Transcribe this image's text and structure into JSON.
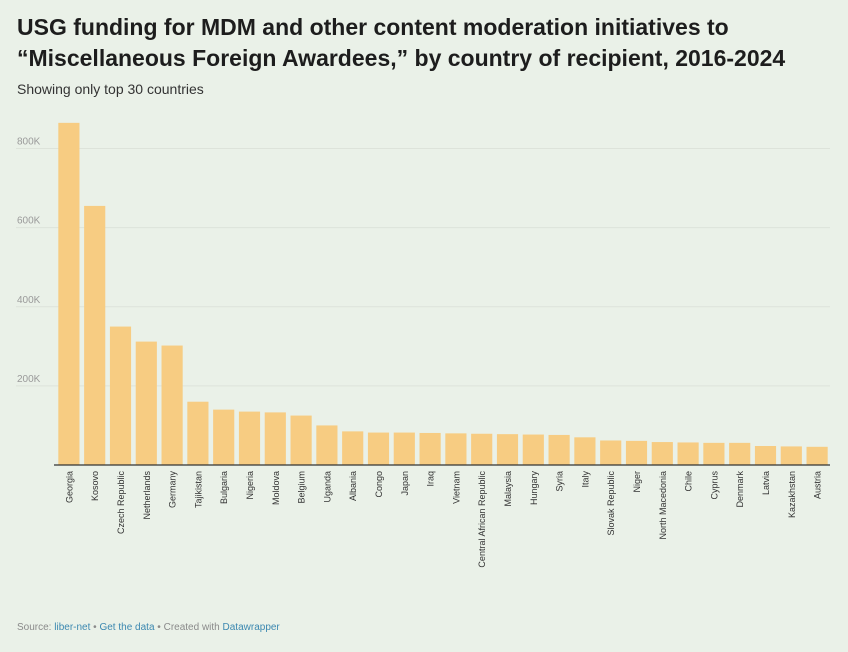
{
  "header": {
    "title_line1": "USG funding for MDM and other content moderation initiatives to",
    "title_line2": "“Miscellaneous Foreign Awardees,” by country of recipient, 2016-2024",
    "subtitle": "Showing only top 30 countries"
  },
  "footer": {
    "source_label": "Source:",
    "source_link": "liber-net",
    "separator": "•",
    "data_link": "Get the data",
    "created_label": "Created with",
    "created_link": "Datawrapper"
  },
  "colors": {
    "bar": "#f7cc82",
    "grid": "#dde3da",
    "tick_text": "#9a9a9a",
    "axis": "#333333"
  },
  "chart_data": {
    "type": "bar",
    "title": "USG funding for MDM and other content moderation initiatives to “Miscellaneous Foreign Awardees,” by country of recipient, 2016-2024",
    "subtitle": "Showing only top 30 countries",
    "xlabel": "",
    "ylabel": "",
    "ylim": [
      0,
      900000
    ],
    "yticks": [
      200000,
      400000,
      600000,
      800000
    ],
    "ytick_labels": [
      "200K",
      "400K",
      "600K",
      "800K"
    ],
    "grid": true,
    "categories": [
      "Georgia",
      "Kosovo",
      "Czech Republic",
      "Netherlands",
      "Germany",
      "Tajikistan",
      "Bulgaria",
      "Nigeria",
      "Moldova",
      "Belgium",
      "Uganda",
      "Albania",
      "Congo",
      "Japan",
      "Iraq",
      "Vietnam",
      "Central African Republic",
      "Malaysia",
      "Hungary",
      "Syria",
      "Italy",
      "Slovak Republic",
      "Niger",
      "North Macedonia",
      "Chile",
      "Cyprus",
      "Denmark",
      "Latvia",
      "Kazakhstan",
      "Austria"
    ],
    "values": [
      865000,
      655000,
      350000,
      312000,
      302000,
      160000,
      140000,
      135000,
      133000,
      125000,
      100000,
      85000,
      82000,
      82000,
      81000,
      80000,
      79000,
      78000,
      77000,
      76000,
      70000,
      62000,
      61000,
      58000,
      57000,
      56000,
      56000,
      48000,
      47000,
      46000
    ]
  }
}
